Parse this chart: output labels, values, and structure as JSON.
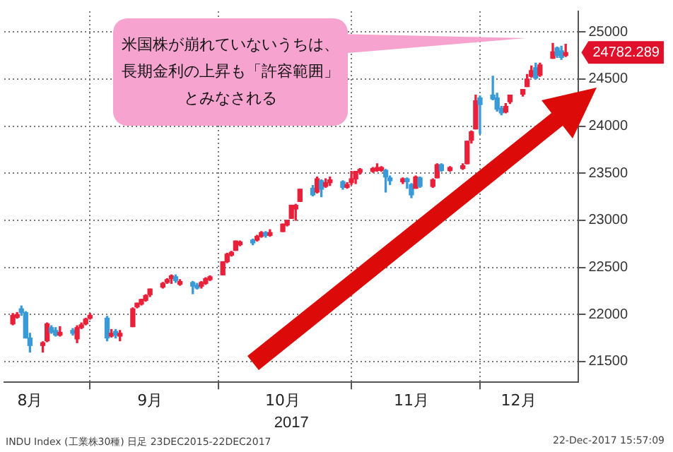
{
  "chart_data": {
    "type": "candlestick",
    "x": [
      "2017-08-14",
      "2017-08-15",
      "2017-08-16",
      "2017-08-17",
      "2017-08-18",
      "2017-08-21",
      "2017-08-22",
      "2017-08-23",
      "2017-08-24",
      "2017-08-25",
      "2017-08-28",
      "2017-08-29",
      "2017-08-30",
      "2017-08-31",
      "2017-09-01",
      "2017-09-05",
      "2017-09-06",
      "2017-09-07",
      "2017-09-08",
      "2017-09-11",
      "2017-09-12",
      "2017-09-13",
      "2017-09-14",
      "2017-09-15",
      "2017-09-18",
      "2017-09-19",
      "2017-09-20",
      "2017-09-21",
      "2017-09-22",
      "2017-09-25",
      "2017-09-26",
      "2017-09-27",
      "2017-09-28",
      "2017-09-29",
      "2017-10-02",
      "2017-10-03",
      "2017-10-04",
      "2017-10-05",
      "2017-10-06",
      "2017-10-09",
      "2017-10-10",
      "2017-10-11",
      "2017-10-12",
      "2017-10-13",
      "2017-10-16",
      "2017-10-17",
      "2017-10-18",
      "2017-10-19",
      "2017-10-20",
      "2017-10-23",
      "2017-10-24",
      "2017-10-25",
      "2017-10-26",
      "2017-10-27",
      "2017-10-30",
      "2017-10-31",
      "2017-11-01",
      "2017-11-02",
      "2017-11-03",
      "2017-11-06",
      "2017-11-07",
      "2017-11-08",
      "2017-11-09",
      "2017-11-10",
      "2017-11-13",
      "2017-11-14",
      "2017-11-15",
      "2017-11-16",
      "2017-11-17",
      "2017-11-20",
      "2017-11-21",
      "2017-11-22",
      "2017-11-24",
      "2017-11-27",
      "2017-11-28",
      "2017-11-29",
      "2017-11-30",
      "2017-12-01",
      "2017-12-04",
      "2017-12-05",
      "2017-12-06",
      "2017-12-07",
      "2017-12-08",
      "2017-12-11",
      "2017-12-12",
      "2017-12-13",
      "2017-12-14",
      "2017-12-15",
      "2017-12-18",
      "2017-12-19",
      "2017-12-20",
      "2017-12-21"
    ],
    "ohlc": [
      [
        21900,
        22010,
        21890,
        21990
      ],
      [
        21970,
        22020,
        21960,
        22000
      ],
      [
        22060,
        22090,
        21990,
        22020
      ],
      [
        22020,
        22030,
        21750,
        21750
      ],
      [
        21750,
        21800,
        21600,
        21670
      ],
      [
        21670,
        21710,
        21600,
        21700
      ],
      [
        21720,
        21910,
        21710,
        21900
      ],
      [
        21860,
        21880,
        21800,
        21810
      ],
      [
        21830,
        21860,
        21770,
        21780
      ],
      [
        21780,
        21870,
        21770,
        21810
      ],
      [
        21830,
        21850,
        21780,
        21800
      ],
      [
        21740,
        21880,
        21700,
        21860
      ],
      [
        21860,
        21910,
        21850,
        21890
      ],
      [
        21900,
        21960,
        21890,
        21950
      ],
      [
        21960,
        22010,
        21950,
        21990
      ],
      [
        21960,
        21980,
        21720,
        21750
      ],
      [
        21770,
        21840,
        21760,
        21800
      ],
      [
        21820,
        21840,
        21750,
        21780
      ],
      [
        21770,
        21830,
        21720,
        21800
      ],
      [
        21870,
        22070,
        21870,
        22060
      ],
      [
        22080,
        22120,
        22070,
        22120
      ],
      [
        22110,
        22160,
        22100,
        22160
      ],
      [
        22150,
        22210,
        22140,
        22200
      ],
      [
        22210,
        22270,
        22190,
        22270
      ],
      [
        22290,
        22340,
        22280,
        22330
      ],
      [
        22340,
        22380,
        22330,
        22370
      ],
      [
        22380,
        22420,
        22330,
        22410
      ],
      [
        22400,
        22420,
        22340,
        22360
      ],
      [
        22320,
        22370,
        22310,
        22350
      ],
      [
        22340,
        22350,
        22220,
        22300
      ],
      [
        22310,
        22330,
        22270,
        22280
      ],
      [
        22300,
        22350,
        22280,
        22340
      ],
      [
        22330,
        22390,
        22320,
        22380
      ],
      [
        22370,
        22410,
        22360,
        22400
      ],
      [
        22420,
        22560,
        22420,
        22560
      ],
      [
        22560,
        22650,
        22550,
        22640
      ],
      [
        22630,
        22670,
        22620,
        22660
      ],
      [
        22680,
        22780,
        22680,
        22780
      ],
      [
        22740,
        22780,
        22730,
        22770
      ],
      [
        22790,
        22800,
        22740,
        22760
      ],
      [
        22790,
        22840,
        22780,
        22830
      ],
      [
        22830,
        22880,
        22820,
        22870
      ],
      [
        22870,
        22880,
        22820,
        22840
      ],
      [
        22840,
        22900,
        22830,
        22870
      ],
      [
        22880,
        22960,
        22880,
        22960
      ],
      [
        22950,
        23000,
        22940,
        23000
      ],
      [
        23020,
        23160,
        23020,
        23160
      ],
      [
        23120,
        23170,
        23000,
        23160
      ],
      [
        23200,
        23330,
        23200,
        23330
      ],
      [
        23340,
        23370,
        23260,
        23270
      ],
      [
        23300,
        23460,
        23290,
        23440
      ],
      [
        23420,
        23430,
        23250,
        23330
      ],
      [
        23360,
        23440,
        23350,
        23400
      ],
      [
        23400,
        23460,
        23370,
        23430
      ],
      [
        23410,
        23420,
        23330,
        23350
      ],
      [
        23350,
        23400,
        23340,
        23380
      ],
      [
        23400,
        23520,
        23380,
        23440
      ],
      [
        23440,
        23520,
        23390,
        23520
      ],
      [
        23510,
        23550,
        23490,
        23540
      ],
      [
        23520,
        23560,
        23510,
        23550
      ],
      [
        23530,
        23600,
        23520,
        23560
      ],
      [
        23530,
        23570,
        23520,
        23560
      ],
      [
        23530,
        23540,
        23300,
        23460
      ],
      [
        23450,
        23470,
        23380,
        23420
      ],
      [
        23410,
        23450,
        23390,
        23440
      ],
      [
        23440,
        23450,
        23340,
        23410
      ],
      [
        23380,
        23390,
        23240,
        23270
      ],
      [
        23340,
        23470,
        23340,
        23460
      ],
      [
        23450,
        23460,
        23350,
        23360
      ],
      [
        23360,
        23440,
        23350,
        23430
      ],
      [
        23450,
        23600,
        23450,
        23590
      ],
      [
        23590,
        23600,
        23520,
        23530
      ],
      [
        23530,
        23570,
        23520,
        23560
      ],
      [
        23550,
        23600,
        23540,
        23580
      ],
      [
        23600,
        23840,
        23600,
        23840
      ],
      [
        23850,
        23950,
        23820,
        23940
      ],
      [
        23970,
        24330,
        23970,
        24270
      ],
      [
        24300,
        24320,
        23920,
        24230
      ],
      [
        24330,
        24530,
        24280,
        24290
      ],
      [
        24300,
        24350,
        24160,
        24180
      ],
      [
        24190,
        24210,
        24120,
        24140
      ],
      [
        24150,
        24240,
        24140,
        24210
      ],
      [
        24260,
        24330,
        24240,
        24330
      ],
      [
        24340,
        24390,
        24320,
        24390
      ],
      [
        24420,
        24550,
        24420,
        24500
      ],
      [
        24530,
        24640,
        24520,
        24590
      ],
      [
        24620,
        24670,
        24500,
        24510
      ],
      [
        24540,
        24670,
        24530,
        24650
      ],
      [
        24720,
        24880,
        24720,
        24790
      ],
      [
        24830,
        24840,
        24730,
        24750
      ],
      [
        24800,
        24850,
        24710,
        24730
      ],
      [
        24750,
        24870,
        24740,
        24782.289
      ]
    ],
    "colors": [
      "#e8203a",
      "#e8203a",
      "#3a9ad8",
      "#3a9ad8",
      "#3a9ad8",
      "#e8203a",
      "#e8203a",
      "#3a9ad8",
      "#3a9ad8",
      "#e8203a",
      "#3a9ad8",
      "#e8203a",
      "#e8203a",
      "#e8203a",
      "#e8203a",
      "#3a9ad8",
      "#e8203a",
      "#3a9ad8",
      "#e8203a",
      "#e8203a",
      "#e8203a",
      "#e8203a",
      "#e8203a",
      "#e8203a",
      "#e8203a",
      "#e8203a",
      "#e8203a",
      "#3a9ad8",
      "#e8203a",
      "#3a9ad8",
      "#3a9ad8",
      "#e8203a",
      "#e8203a",
      "#e8203a",
      "#e8203a",
      "#e8203a",
      "#e8203a",
      "#e8203a",
      "#e8203a",
      "#3a9ad8",
      "#e8203a",
      "#e8203a",
      "#3a9ad8",
      "#e8203a",
      "#e8203a",
      "#e8203a",
      "#e8203a",
      "#e8203a",
      "#e8203a",
      "#3a9ad8",
      "#e8203a",
      "#3a9ad8",
      "#e8203a",
      "#e8203a",
      "#3a9ad8",
      "#e8203a",
      "#e8203a",
      "#e8203a",
      "#e8203a",
      "#e8203a",
      "#e8203a",
      "#e8203a",
      "#3a9ad8",
      "#3a9ad8",
      "#e8203a",
      "#3a9ad8",
      "#3a9ad8",
      "#e8203a",
      "#3a9ad8",
      "#e8203a",
      "#e8203a",
      "#3a9ad8",
      "#e8203a",
      "#e8203a",
      "#e8203a",
      "#e8203a",
      "#e8203a",
      "#3a9ad8",
      "#3a9ad8",
      "#3a9ad8",
      "#3a9ad8",
      "#e8203a",
      "#e8203a",
      "#e8203a",
      "#e8203a",
      "#e8203a",
      "#3a9ad8",
      "#e8203a",
      "#e8203a",
      "#3a9ad8",
      "#3a9ad8",
      "#e8203a"
    ],
    "xlabel": "2017",
    "xlim": [
      "2017-08-12",
      "2017-12-24"
    ],
    "xticks": [
      {
        "value": "2017-08-18",
        "label": "8月"
      },
      {
        "value": "2017-09-01",
        "label": null
      },
      {
        "value": "2017-09-15",
        "label": "9月"
      },
      {
        "value": "2017-10-01",
        "label": null
      },
      {
        "value": "2017-10-16",
        "label": "10月"
      },
      {
        "value": "2017-11-01",
        "label": null
      },
      {
        "value": "2017-11-15",
        "label": "11月"
      },
      {
        "value": "2017-12-01",
        "label": null
      },
      {
        "value": "2017-12-10",
        "label": "12月"
      }
    ],
    "ylim": [
      21280,
      25220
    ],
    "yticks": [
      21500,
      22000,
      22500,
      23000,
      23500,
      24000,
      24500,
      25000
    ],
    "grid": true,
    "annotations": [
      "米国株が崩れていないうちは、長期金利の上昇も「許容範囲」とみなされる",
      "24782.289",
      "INDU Index (工業株30種) 日足 23DEC2015-22DEC2017",
      "22-Dec-2017 15:57:09"
    ]
  }
}
